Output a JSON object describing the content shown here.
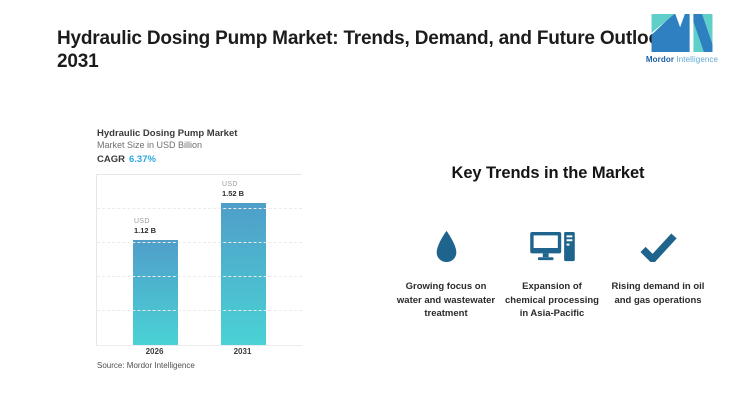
{
  "header": {
    "title": "Hydraulic Dosing Pump Market: Trends, Demand, and Future Outlook 2031",
    "logo": {
      "brand_bold": "Mordor",
      "brand_light": "Intelligence",
      "teal": "#60cfc9",
      "blue": "#2e80c0"
    }
  },
  "chart": {
    "title": "Hydraulic Dosing Pump Market",
    "subtitle": "Market Size in USD Billion",
    "cagr_label": "CAGR",
    "cagr_value": "6.37%",
    "source": "Source: Mordor Intelligence"
  },
  "chart_data": {
    "type": "bar",
    "title": "Hydraulic Dosing Pump Market",
    "subtitle": "Market Size in USD Billion",
    "cagr": "6.37%",
    "unit": "USD Billion",
    "categories": [
      "2026",
      "2031"
    ],
    "values": [
      1.12,
      1.52
    ],
    "value_labels": [
      [
        "USD",
        "1.12 B"
      ],
      [
        "USD",
        "1.52 B"
      ]
    ],
    "ylim": [
      0,
      1.82
    ],
    "grid": true,
    "legend": "none",
    "bar_gradient_top": "#4f9ec9",
    "bar_gradient_bottom": "#4ad2d5"
  },
  "trends": {
    "heading": "Key Trends in the Market",
    "icon_color": "#1e648c",
    "items": [
      {
        "icon": "water-drop-icon",
        "text": "Growing focus on water and wastewater treatment"
      },
      {
        "icon": "desktop-computer-icon",
        "text": "Expansion of chemical processing in Asia-Pacific"
      },
      {
        "icon": "checkmark-icon",
        "text": "Rising demand in oil and gas operations"
      }
    ]
  }
}
